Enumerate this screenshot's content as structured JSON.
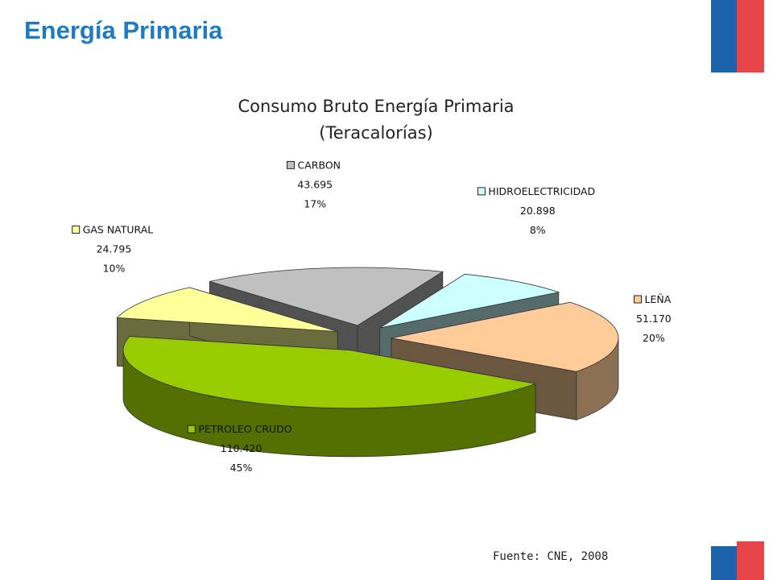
{
  "slide": {
    "title": "Energía Primaria",
    "source": "Fuente: CNE, 2008"
  },
  "colors": {
    "title": "#1f7bc1",
    "flag_blue": "#1d63ac",
    "flag_red": "#e8454a"
  },
  "chart_data": {
    "type": "pie",
    "title": [
      "Consumo Bruto Energía Primaria",
      "(Teracalorías)"
    ],
    "style": "3d-exploded",
    "legend": "none",
    "slices": [
      {
        "label": "HIDROELECTRICIDAD",
        "value": 20.898,
        "value_text": "20.898",
        "percent_text": "8%",
        "color": "#ccffff"
      },
      {
        "label": "LEÑA",
        "value": 51.17,
        "value_text": "51.170",
        "percent_text": "20%",
        "color": "#ffcc99"
      },
      {
        "label": "PETROLEO CRUDO",
        "value": 110.42,
        "value_text": "110.420",
        "percent_text": "45%",
        "color": "#99cc00"
      },
      {
        "label": "GAS NATURAL",
        "value": 24.795,
        "value_text": "24.795",
        "percent_text": "10%",
        "color": "#ffff99"
      },
      {
        "label": "CARBON",
        "value": 43.695,
        "value_text": "43.695",
        "percent_text": "17%",
        "color": "#c0c0c0"
      }
    ]
  }
}
